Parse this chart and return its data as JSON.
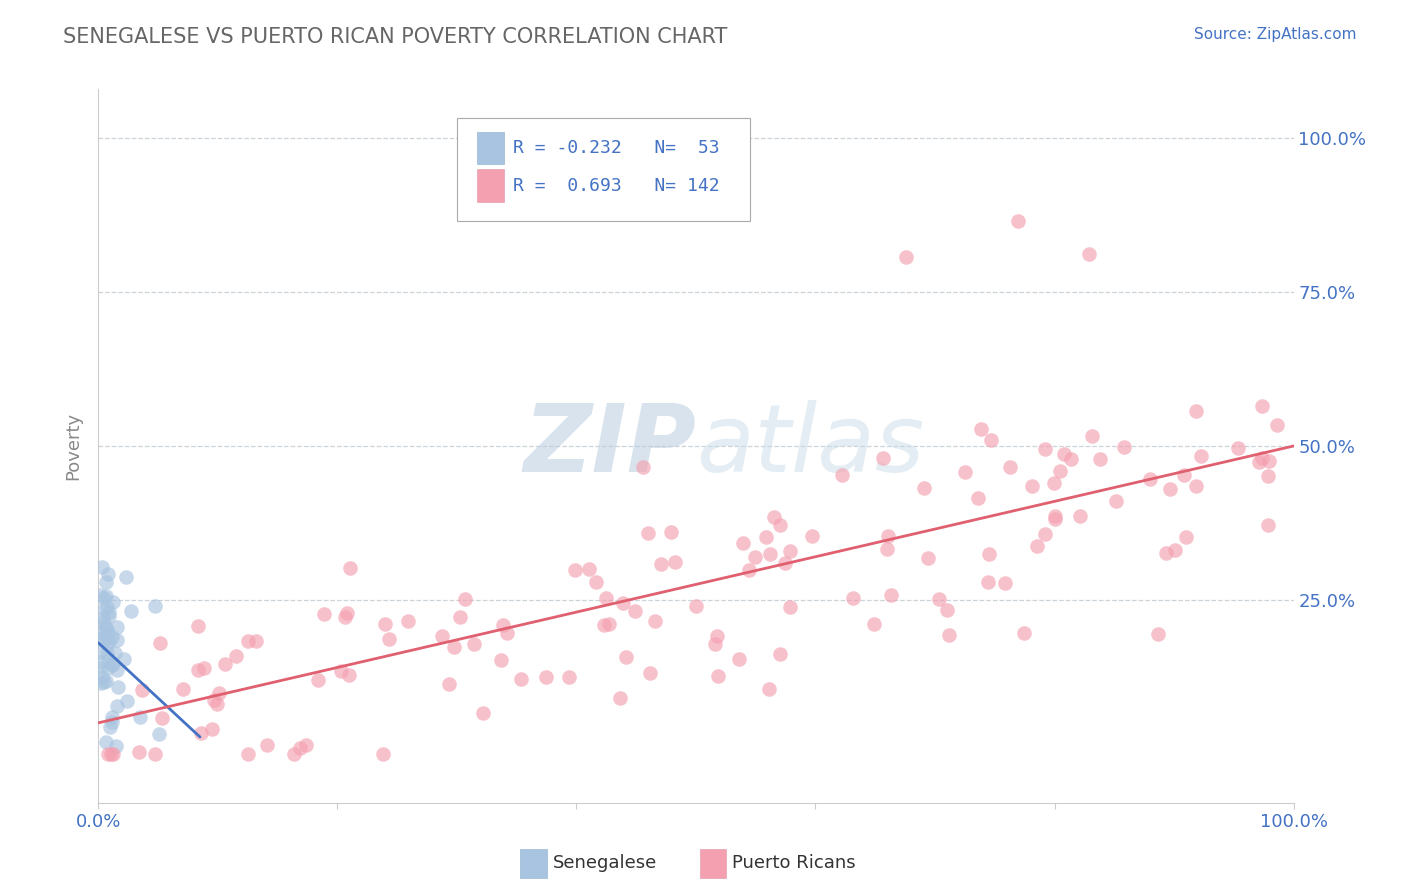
{
  "title": "SENEGALESE VS PUERTO RICAN POVERTY CORRELATION CHART",
  "source_text": "Source: ZipAtlas.com",
  "ylabel": "Poverty",
  "xlim": [
    0.0,
    1.0
  ],
  "ylim": [
    -0.05,
    1.05
  ],
  "yplot_min": 0.0,
  "yplot_max": 1.0,
  "senegalese_R": -0.232,
  "senegalese_N": 53,
  "puerto_rican_R": 0.693,
  "puerto_rican_N": 142,
  "senegalese_color": "#a8c4e0",
  "puerto_rican_color": "#f4a0b0",
  "senegalese_line_color": "#4472c4",
  "puerto_rican_line_color": "#e06070",
  "background_color": "#ffffff",
  "grid_color": "#c0c8d0",
  "title_color": "#666666",
  "axis_label_color": "#888888",
  "tick_label_color": "#4472c4",
  "watermark_color": "#d0dce8",
  "watermark_text": "ZIPatlas",
  "legend_R_color": "#4472c4",
  "legend_N_color": "#4472c4",
  "bottom_legend_text_color": "#333333"
}
